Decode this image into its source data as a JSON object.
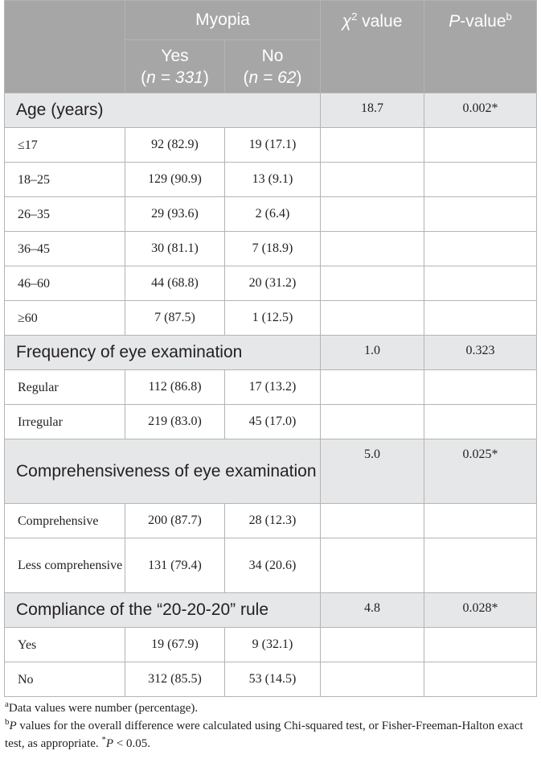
{
  "header": {
    "myopia": "Myopia",
    "yes_label": "Yes",
    "yes_n": "n = 331",
    "no_label": "No",
    "no_n": "n = 62",
    "chi_label_pre": "χ",
    "chi_sup": "2",
    "chi_label_post": " value",
    "p_label_italic": "P",
    "p_label_post": "-value",
    "p_sup": "b"
  },
  "groups": [
    {
      "label": "Age (years)",
      "chi": "18.7",
      "p": "0.002*",
      "rows": [
        {
          "label": "≤17",
          "yes": "92 (82.9)",
          "no": "19 (17.1)"
        },
        {
          "label": "18–25",
          "yes": "129 (90.9)",
          "no": "13 (9.1)"
        },
        {
          "label": "26–35",
          "yes": "29 (93.6)",
          "no": "2 (6.4)"
        },
        {
          "label": "36–45",
          "yes": "30 (81.1)",
          "no": "7 (18.9)"
        },
        {
          "label": "46–60",
          "yes": "44 (68.8)",
          "no": "20 (31.2)"
        },
        {
          "label": "≥60",
          "yes": "7 (87.5)",
          "no": "1 (12.5)"
        }
      ]
    },
    {
      "label": "Frequency of eye examination",
      "chi": "1.0",
      "p": "0.323",
      "rows": [
        {
          "label": "Regular",
          "yes": "112 (86.8)",
          "no": "17 (13.2)"
        },
        {
          "label": "Irregular",
          "yes": "219 (83.0)",
          "no": "45 (17.0)"
        }
      ]
    },
    {
      "label": "Comprehensiveness of eye examination",
      "chi": "5.0",
      "p": "0.025*",
      "rows": [
        {
          "label": "Comprehensive",
          "yes": "200 (87.7)",
          "no": "28 (12.3)"
        },
        {
          "label": "Less comprehensive",
          "yes": "131 (79.4)",
          "no": "34 (20.6)"
        }
      ]
    },
    {
      "label": "Compliance of the “20-20-20” rule",
      "chi": "4.8",
      "p": "0.028*",
      "rows": [
        {
          "label": "Yes",
          "yes": "19 (67.9)",
          "no": "9 (32.1)"
        },
        {
          "label": "No",
          "yes": "312 (85.5)",
          "no": "53 (14.5)"
        }
      ]
    }
  ],
  "footnotes": {
    "a_sup": "a",
    "a_text": "Data values were number (percentage).",
    "b_sup": "b",
    "b_italic": "P",
    "b_text": " values for the overall difference were calculated using Chi-squared test, or Fisher-Freeman-Halton exact test, as appropriate. ",
    "b_star": "*",
    "b_p_italic": "P",
    "b_tail": " < 0.05."
  }
}
